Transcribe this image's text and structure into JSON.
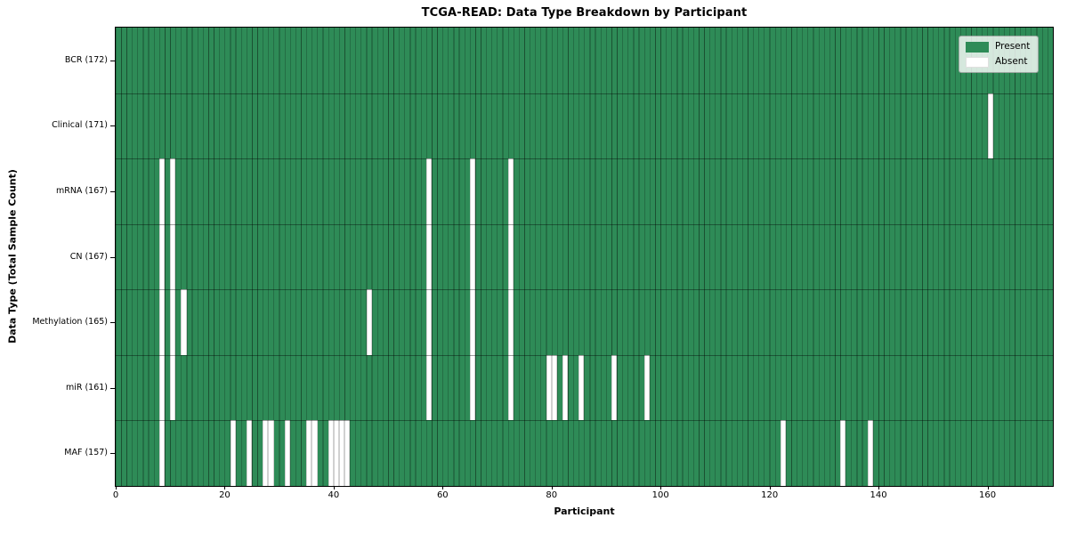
{
  "figure_title": "TCGA-READ: Data Type Breakdown by Participant",
  "chart_data": {
    "type": "heatmap",
    "title": "TCGA-READ: Data Type Breakdown by Participant",
    "xlabel": "Participant",
    "ylabel": "Data Type (Total Sample Count)",
    "n_participants": 172,
    "xlim": [
      0,
      172
    ],
    "x_ticks": [
      0,
      20,
      40,
      60,
      80,
      100,
      120,
      140,
      160
    ],
    "grid": "per-cell vertical gridlines and row separator lines",
    "legend": {
      "position": "upper right",
      "entries": [
        {
          "label": "Present",
          "color": "#2e8b57"
        },
        {
          "label": "Absent",
          "color": "#ffffff"
        }
      ]
    },
    "rows": [
      {
        "data_type": "BCR",
        "label": "BCR (172)",
        "total": 172,
        "absent_participants": []
      },
      {
        "data_type": "Clinical",
        "label": "Clinical (171)",
        "total": 171,
        "absent_participants": [
          160
        ]
      },
      {
        "data_type": "mRNA",
        "label": "mRNA (167)",
        "total": 167,
        "absent_participants": [
          8,
          10,
          57,
          65,
          72
        ]
      },
      {
        "data_type": "CN",
        "label": "CN (167)",
        "total": 167,
        "absent_participants": [
          8,
          10,
          57,
          65,
          72
        ]
      },
      {
        "data_type": "Methylation",
        "label": "Methylation (165)",
        "total": 165,
        "absent_participants": [
          8,
          10,
          12,
          46,
          57,
          65,
          72
        ]
      },
      {
        "data_type": "miR",
        "label": "miR (161)",
        "total": 161,
        "absent_participants": [
          8,
          10,
          57,
          65,
          72,
          79,
          80,
          82,
          85,
          91,
          97
        ]
      },
      {
        "data_type": "MAF",
        "label": "MAF (157)",
        "total": 157,
        "absent_participants": [
          8,
          21,
          24,
          27,
          28,
          31,
          35,
          36,
          39,
          40,
          41,
          42,
          122,
          133,
          138
        ]
      }
    ],
    "colors": {
      "present": "#2e8b57",
      "absent": "#ffffff",
      "gridline_on_green": "rgba(0,0,0,0.42)",
      "absent_bar_edge": "rgba(0,0,0,0.18)",
      "row_separator": "rgba(0,0,0,0.38)",
      "spine": "#000000"
    }
  }
}
